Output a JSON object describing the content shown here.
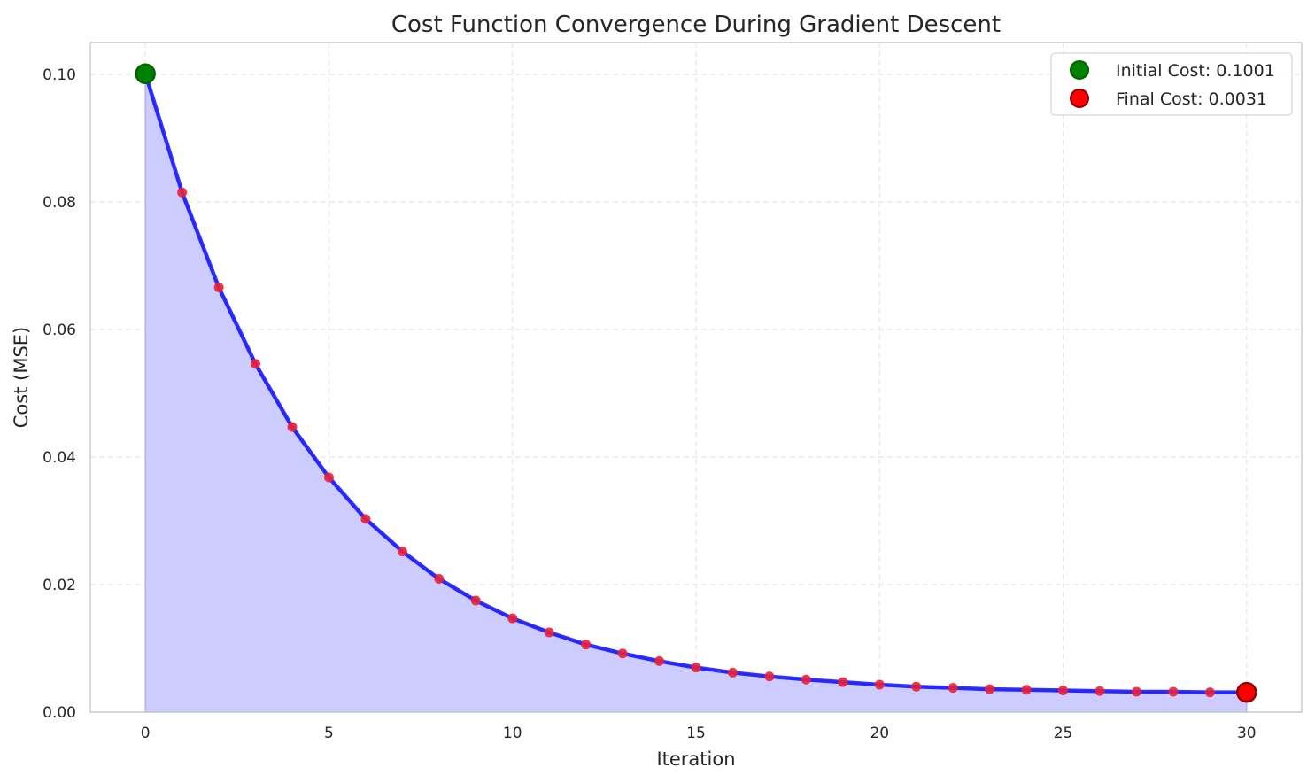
{
  "chart_data": {
    "type": "line",
    "title": "Cost Function Convergence During Gradient Descent",
    "xlabel": "Iteration",
    "ylabel": "Cost (MSE)",
    "xlim": [
      -1.5,
      31.5
    ],
    "ylim": [
      0.0,
      0.105
    ],
    "x_ticks": [
      0,
      5,
      10,
      15,
      20,
      25,
      30
    ],
    "y_ticks": [
      0.0,
      0.02,
      0.04,
      0.06,
      0.08,
      0.1
    ],
    "x_tick_labels": [
      "0",
      "5",
      "10",
      "15",
      "20",
      "25",
      "30"
    ],
    "y_tick_labels": [
      "0.00",
      "0.02",
      "0.04",
      "0.06",
      "0.08",
      "0.10"
    ],
    "grid": true,
    "legend_position": "top-right",
    "series": [
      {
        "x": [
          0,
          1,
          2,
          3,
          4,
          5,
          6,
          7,
          8,
          9,
          10,
          11,
          12,
          13,
          14,
          15,
          16,
          17,
          18,
          19,
          20,
          21,
          22,
          23,
          24,
          25,
          26,
          27,
          28,
          29,
          30
        ],
        "values": [
          0.1001,
          0.0815,
          0.0666,
          0.0546,
          0.0447,
          0.0368,
          0.0303,
          0.0252,
          0.0209,
          0.0175,
          0.0147,
          0.0125,
          0.0106,
          0.0092,
          0.008,
          0.007,
          0.0062,
          0.0056,
          0.0051,
          0.0047,
          0.0043,
          0.004,
          0.0038,
          0.0036,
          0.0035,
          0.0034,
          0.0033,
          0.0032,
          0.0032,
          0.0031,
          0.0031
        ]
      }
    ],
    "highlights": [
      {
        "label": "Initial Cost: 0.1001",
        "x": 0,
        "y": 0.1001,
        "color": "#008000",
        "edge": "#006400"
      },
      {
        "label": "Final Cost: 0.0031",
        "x": 30,
        "y": 0.0031,
        "color": "#ff0000",
        "edge": "#8b0000"
      }
    ],
    "colors": {
      "line": "#0000ff",
      "fill": "#ccccff",
      "marker": "#e8213a"
    }
  }
}
